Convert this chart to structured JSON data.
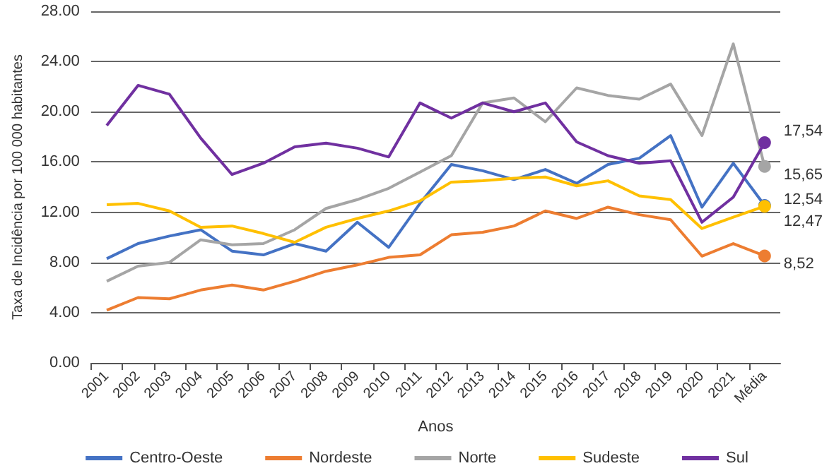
{
  "chart_data": {
    "type": "line",
    "xlabel": "Anos",
    "ylabel": "Taxa de Incidência por 100 000 habitantes",
    "categories": [
      "2001",
      "2002",
      "2003",
      "2004",
      "2005",
      "2006",
      "2007",
      "2008",
      "2009",
      "2010",
      "2011",
      "2012",
      "2013",
      "2014",
      "2015",
      "2016",
      "2017",
      "2018",
      "2019",
      "2020",
      "2021",
      "Média"
    ],
    "series": [
      {
        "name": "Centro-Oeste",
        "color": "#4472c4",
        "values": [
          8.3,
          9.5,
          10.1,
          10.6,
          8.9,
          8.6,
          9.5,
          8.9,
          11.2,
          9.2,
          12.7,
          15.8,
          15.3,
          14.6,
          15.4,
          14.3,
          15.8,
          16.3,
          18.1,
          12.4,
          15.9,
          12.54
        ],
        "value_labels": [
          null,
          null,
          null,
          null,
          null,
          null,
          null,
          null,
          null,
          null,
          null,
          null,
          null,
          null,
          null,
          null,
          null,
          null,
          null,
          null,
          null,
          "12,54"
        ]
      },
      {
        "name": "Nordeste",
        "color": "#ed7d31",
        "values": [
          4.2,
          5.2,
          5.1,
          5.8,
          6.2,
          5.8,
          6.5,
          7.3,
          7.8,
          8.4,
          8.6,
          10.2,
          10.4,
          10.9,
          12.1,
          11.5,
          12.4,
          11.8,
          11.4,
          8.5,
          9.5,
          8.52
        ],
        "value_labels": [
          null,
          null,
          null,
          null,
          null,
          null,
          null,
          null,
          null,
          null,
          null,
          null,
          null,
          null,
          null,
          null,
          null,
          null,
          null,
          null,
          null,
          "8,52"
        ]
      },
      {
        "name": "Norte",
        "color": "#a5a5a5",
        "values": [
          6.5,
          7.7,
          8.0,
          9.8,
          9.4,
          9.5,
          10.6,
          12.3,
          13.0,
          13.9,
          15.2,
          16.5,
          20.7,
          21.1,
          19.2,
          21.9,
          21.3,
          21.0,
          22.2,
          18.1,
          25.4,
          15.65
        ],
        "value_labels": [
          null,
          null,
          null,
          null,
          null,
          null,
          null,
          null,
          null,
          null,
          null,
          null,
          null,
          null,
          null,
          null,
          null,
          null,
          null,
          null,
          null,
          "15,65"
        ]
      },
      {
        "name": "Sudeste",
        "color": "#ffc000",
        "values": [
          12.6,
          12.7,
          12.1,
          10.8,
          10.9,
          10.3,
          9.6,
          10.8,
          11.5,
          12.1,
          12.9,
          14.4,
          14.5,
          14.7,
          14.8,
          14.1,
          14.5,
          13.3,
          13.0,
          10.7,
          11.6,
          12.47
        ],
        "value_labels": [
          null,
          null,
          null,
          null,
          null,
          null,
          null,
          null,
          null,
          null,
          null,
          null,
          null,
          null,
          null,
          null,
          null,
          null,
          null,
          null,
          null,
          "12,47"
        ]
      },
      {
        "name": "Sul",
        "color": "#7030a0",
        "values": [
          18.9,
          22.1,
          21.4,
          17.9,
          15.0,
          15.9,
          17.2,
          17.5,
          17.1,
          16.4,
          20.7,
          19.5,
          20.7,
          20.0,
          20.7,
          17.6,
          16.5,
          15.9,
          16.1,
          11.2,
          13.2,
          17.54
        ],
        "value_labels": [
          null,
          null,
          null,
          null,
          null,
          null,
          null,
          null,
          null,
          null,
          null,
          null,
          null,
          null,
          null,
          null,
          null,
          null,
          null,
          null,
          null,
          "17,54"
        ]
      }
    ],
    "ylim": [
      0,
      28
    ],
    "yticks": [
      {
        "value": 0,
        "label": "0.00"
      },
      {
        "value": 4,
        "label": "4.00"
      },
      {
        "value": 8,
        "label": "8.00"
      },
      {
        "value": 12,
        "label": "12.00"
      },
      {
        "value": 16,
        "label": "16.00"
      },
      {
        "value": 20,
        "label": "20.00"
      },
      {
        "value": 24,
        "label": "24.00"
      },
      {
        "value": 28,
        "label": "28.00"
      }
    ],
    "grid": "y",
    "legend": "bottom",
    "marker": "none",
    "line_style": "solid"
  }
}
